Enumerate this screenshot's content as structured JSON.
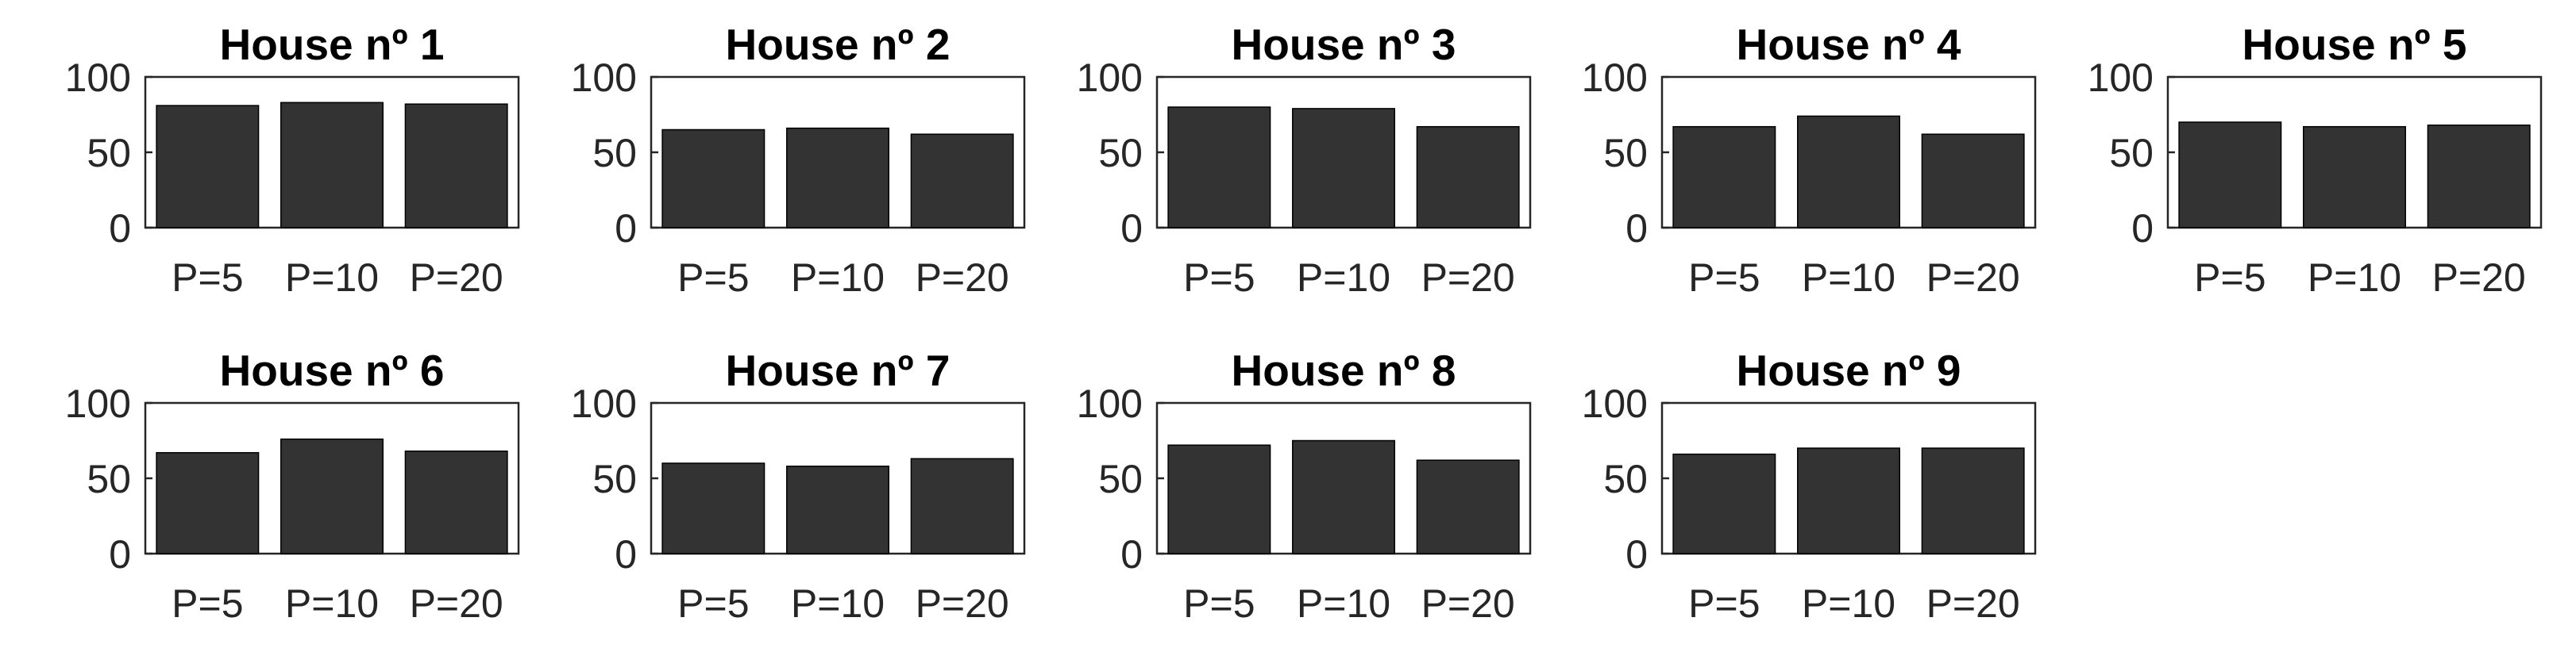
{
  "chart_data": [
    {
      "type": "bar",
      "title": "House nº 1",
      "categories": [
        "P=5",
        "P=10",
        "P=20"
      ],
      "values": [
        81,
        83,
        82
      ],
      "ylim": [
        0,
        100
      ],
      "yticks": [
        "0",
        "50",
        "100"
      ]
    },
    {
      "type": "bar",
      "title": "House nº 2",
      "categories": [
        "P=5",
        "P=10",
        "P=20"
      ],
      "values": [
        65,
        66,
        62
      ],
      "ylim": [
        0,
        100
      ],
      "yticks": [
        "0",
        "50",
        "100"
      ]
    },
    {
      "type": "bar",
      "title": "House nº 3",
      "categories": [
        "P=5",
        "P=10",
        "P=20"
      ],
      "values": [
        80,
        79,
        67
      ],
      "ylim": [
        0,
        100
      ],
      "yticks": [
        "0",
        "50",
        "100"
      ]
    },
    {
      "type": "bar",
      "title": "House nº 4",
      "categories": [
        "P=5",
        "P=10",
        "P=20"
      ],
      "values": [
        67,
        74,
        62
      ],
      "ylim": [
        0,
        100
      ],
      "yticks": [
        "0",
        "50",
        "100"
      ]
    },
    {
      "type": "bar",
      "title": "House nº 5",
      "categories": [
        "P=5",
        "P=10",
        "P=20"
      ],
      "values": [
        70,
        67,
        68
      ],
      "ylim": [
        0,
        100
      ],
      "yticks": [
        "0",
        "50",
        "100"
      ]
    },
    {
      "type": "bar",
      "title": "House nº 6",
      "categories": [
        "P=5",
        "P=10",
        "P=20"
      ],
      "values": [
        67,
        76,
        68
      ],
      "ylim": [
        0,
        100
      ],
      "yticks": [
        "0",
        "50",
        "100"
      ]
    },
    {
      "type": "bar",
      "title": "House nº 7",
      "categories": [
        "P=5",
        "P=10",
        "P=20"
      ],
      "values": [
        60,
        58,
        63
      ],
      "ylim": [
        0,
        100
      ],
      "yticks": [
        "0",
        "50",
        "100"
      ]
    },
    {
      "type": "bar",
      "title": "House nº 8",
      "categories": [
        "P=5",
        "P=10",
        "P=20"
      ],
      "values": [
        72,
        75,
        62
      ],
      "ylim": [
        0,
        100
      ],
      "yticks": [
        "0",
        "50",
        "100"
      ]
    },
    {
      "type": "bar",
      "title": "House nº 9",
      "categories": [
        "P=5",
        "P=10",
        "P=20"
      ],
      "values": [
        66,
        70,
        70
      ],
      "ylim": [
        0,
        100
      ],
      "yticks": [
        "0",
        "50",
        "100"
      ]
    }
  ],
  "colors": {
    "bar": "#333333",
    "axis": "#262626",
    "background": "#ffffff"
  }
}
